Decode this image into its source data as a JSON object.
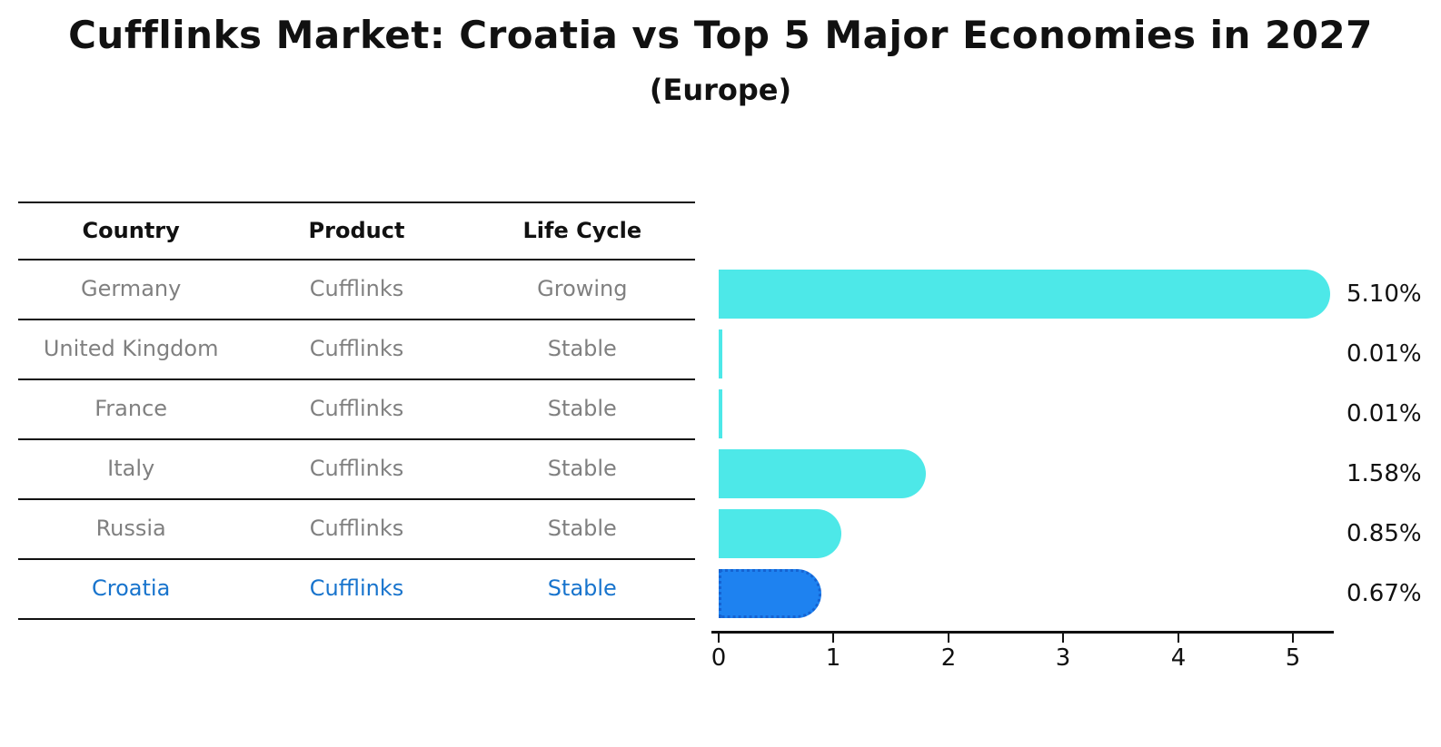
{
  "header": {
    "title": "Cufflinks Market: Croatia vs Top 5 Major Economies in 2027",
    "subtitle": "(Europe)"
  },
  "table": {
    "columns": [
      "Country",
      "Product",
      "Life Cycle"
    ],
    "rows": [
      {
        "country": "Germany",
        "product": "Cufflinks",
        "life_cycle": "Growing",
        "highlight": false
      },
      {
        "country": "United Kingdom",
        "product": "Cufflinks",
        "life_cycle": "Stable",
        "highlight": false
      },
      {
        "country": "France",
        "product": "Cufflinks",
        "life_cycle": "Stable",
        "highlight": false
      },
      {
        "country": "Italy",
        "product": "Cufflinks",
        "life_cycle": "Stable",
        "highlight": false
      },
      {
        "country": "Russia",
        "product": "Cufflinks",
        "life_cycle": "Stable",
        "highlight": false
      },
      {
        "country": "Croatia",
        "product": "Cufflinks",
        "life_cycle": "Stable",
        "highlight": true
      }
    ]
  },
  "chart_data": {
    "type": "bar",
    "orientation": "horizontal",
    "title": "Cufflinks Market: Croatia vs Top 5 Major Economies in 2027",
    "subtitle": "(Europe)",
    "categories": [
      "Germany",
      "United Kingdom",
      "France",
      "Italy",
      "Russia",
      "Croatia"
    ],
    "values": [
      5.1,
      0.01,
      0.01,
      1.58,
      0.85,
      0.67
    ],
    "value_labels": [
      "5.10%",
      "0.01%",
      "0.01%",
      "1.58%",
      "0.85%",
      "0.67%"
    ],
    "unit": "%",
    "x_ticks": [
      "0",
      "1",
      "2",
      "3",
      "4",
      "5"
    ],
    "xlim": [
      0,
      5.4
    ],
    "grid": false,
    "legend": false,
    "highlight_index": 5,
    "colors": {
      "bar": "#4DE8E8",
      "highlight_fill": "#1E82F0",
      "highlight_edge": "#1563D2",
      "highlight_text": "#1874CD",
      "table_text": "#808080",
      "text": "#111111"
    }
  }
}
